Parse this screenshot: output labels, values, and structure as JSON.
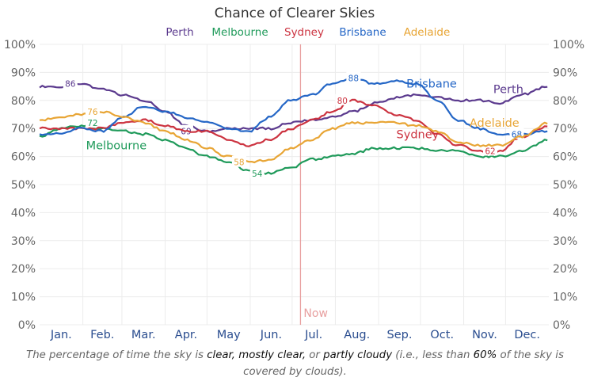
{
  "chart_data": {
    "type": "line",
    "title": "Chance of Clearer Skies",
    "xlabel": "",
    "ylabel": "",
    "ylim": [
      0,
      100
    ],
    "yticks": [
      "0%",
      "10%",
      "20%",
      "30%",
      "40%",
      "50%",
      "60%",
      "70%",
      "80%",
      "90%",
      "100%"
    ],
    "y_tick_values": [
      0,
      10,
      20,
      30,
      40,
      50,
      60,
      70,
      80,
      90,
      100
    ],
    "months": [
      "Jan.",
      "Feb.",
      "Mar.",
      "Apr.",
      "May",
      "Jun.",
      "Jul.",
      "Aug.",
      "Sep.",
      "Oct.",
      "Nov.",
      "Dec."
    ],
    "grid": true,
    "legend_position": "top-center",
    "now_marker": {
      "label": "Now",
      "day": 187,
      "color": "#e8a0a0"
    },
    "x_unit": "day of year (0-365)",
    "series": [
      {
        "name": "Perth",
        "color": "#5b3a8e",
        "x": [
          0,
          15,
          30,
          45,
          60,
          75,
          90,
          105,
          120,
          135,
          150,
          165,
          180,
          195,
          210,
          225,
          240,
          255,
          270,
          285,
          300,
          315,
          330,
          345,
          365
        ],
        "values": [
          85,
          85,
          86,
          84,
          82,
          80,
          76,
          71,
          69,
          70,
          70,
          70,
          72,
          73,
          74,
          76,
          79,
          81,
          82,
          81,
          80,
          80,
          79,
          82,
          85
        ],
        "annotations": [
          {
            "x": 22,
            "value": 86,
            "text": "86"
          },
          {
            "x": 105,
            "value": 69,
            "text": "69"
          }
        ],
        "end_label": {
          "text": "Perth",
          "x": 336,
          "value": 84
        }
      },
      {
        "name": "Melbourne",
        "color": "#1f9a5a",
        "x": [
          0,
          15,
          30,
          45,
          60,
          75,
          90,
          105,
          120,
          135,
          150,
          165,
          180,
          195,
          210,
          225,
          240,
          255,
          270,
          285,
          300,
          315,
          330,
          345,
          365
        ],
        "values": [
          67,
          70,
          71,
          70,
          69,
          68,
          66,
          63,
          60,
          58,
          55,
          54,
          56,
          59,
          60,
          61,
          63,
          63,
          63,
          62,
          62,
          60,
          60,
          62,
          66
        ],
        "annotations": [
          {
            "x": 38,
            "value": 72,
            "text": "72"
          },
          {
            "x": 156,
            "value": 54,
            "text": "54"
          }
        ],
        "end_label": {
          "text": "Melbourne",
          "x": 55,
          "value": 64
        }
      },
      {
        "name": "Sydney",
        "color": "#cc3340",
        "x": [
          0,
          15,
          30,
          45,
          60,
          75,
          90,
          105,
          120,
          135,
          150,
          165,
          180,
          195,
          210,
          225,
          240,
          255,
          270,
          285,
          300,
          315,
          330,
          345,
          365
        ],
        "values": [
          70,
          70,
          70,
          70,
          72,
          73,
          71,
          69,
          69,
          66,
          64,
          66,
          70,
          73,
          76,
          80,
          78,
          75,
          73,
          68,
          64,
          62,
          62,
          67,
          71
        ],
        "annotations": [
          {
            "x": 217,
            "value": 80,
            "text": "80"
          },
          {
            "x": 323,
            "value": 62,
            "text": "62"
          }
        ],
        "end_label": {
          "text": "Sydney",
          "x": 271,
          "value": 68
        }
      },
      {
        "name": "Brisbane",
        "color": "#2466c6",
        "x": [
          0,
          15,
          30,
          45,
          60,
          75,
          90,
          105,
          120,
          135,
          150,
          165,
          180,
          195,
          210,
          225,
          240,
          255,
          270,
          285,
          300,
          315,
          330,
          345,
          365
        ],
        "values": [
          68,
          68,
          70,
          69,
          74,
          78,
          76,
          74,
          72,
          70,
          69,
          74,
          80,
          82,
          86,
          88,
          86,
          87,
          86,
          80,
          73,
          70,
          68,
          68,
          69
        ],
        "annotations": [
          {
            "x": 225,
            "value": 88,
            "text": "88"
          },
          {
            "x": 342,
            "value": 68,
            "text": "68"
          }
        ],
        "end_label": {
          "text": "Brisbane",
          "x": 281,
          "value": 86
        }
      },
      {
        "name": "Adelaide",
        "color": "#e8a535",
        "x": [
          0,
          15,
          30,
          45,
          60,
          75,
          90,
          105,
          120,
          135,
          150,
          165,
          180,
          195,
          210,
          225,
          240,
          255,
          270,
          285,
          300,
          315,
          330,
          345,
          365
        ],
        "values": [
          73,
          74,
          75,
          76,
          74,
          72,
          69,
          66,
          63,
          60,
          58,
          59,
          63,
          66,
          70,
          72,
          72,
          72,
          71,
          69,
          65,
          64,
          64,
          67,
          72
        ],
        "annotations": [
          {
            "x": 38,
            "value": 76,
            "text": "76"
          },
          {
            "x": 143,
            "value": 58,
            "text": "58"
          }
        ],
        "end_label": {
          "text": "Adelaide",
          "x": 326,
          "value": 72
        }
      }
    ]
  },
  "caption": {
    "parts": [
      {
        "text": "The percentage of time the sky is ",
        "bold": false
      },
      {
        "text": "clear, mostly clear,",
        "bold": true
      },
      {
        "text": " or ",
        "bold": false
      },
      {
        "text": "partly cloudy",
        "bold": true
      },
      {
        "text": " (i.e., less than ",
        "bold": false
      },
      {
        "text": "60%",
        "bold": true
      },
      {
        "text": " of the sky is covered by clouds).",
        "bold": false
      }
    ]
  }
}
